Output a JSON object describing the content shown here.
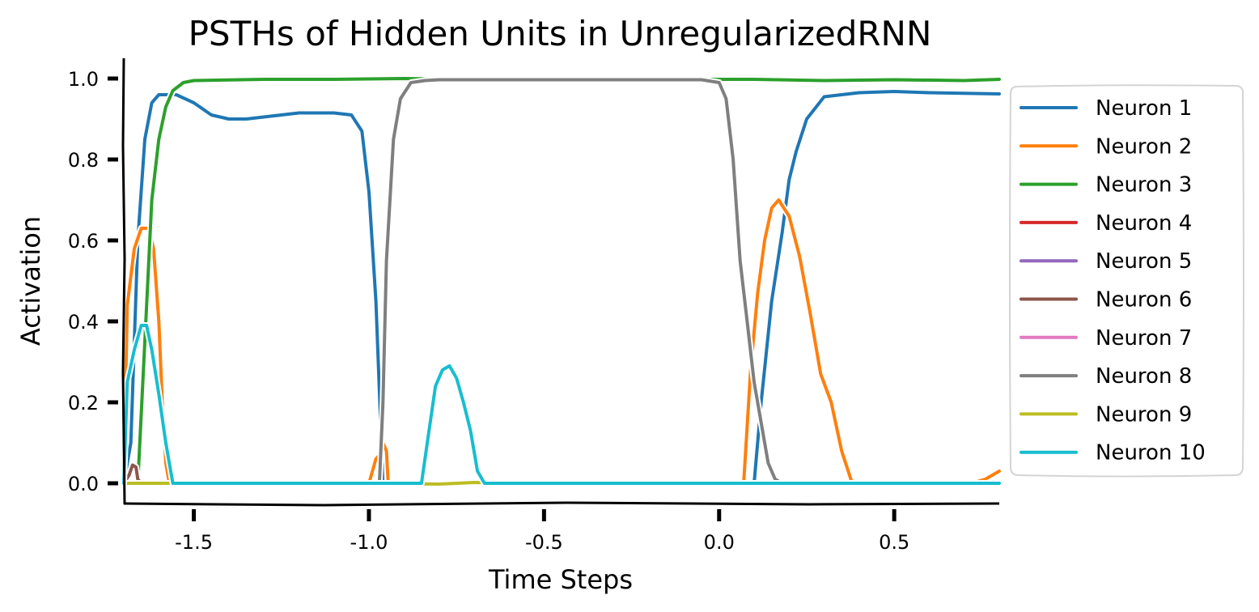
{
  "chart_data": {
    "type": "line",
    "title": "PSTHs of Hidden Units in UnregularizedRNN",
    "xlabel": "Time Steps",
    "ylabel": "Activation",
    "xlim": [
      -1.7,
      0.8
    ],
    "ylim": [
      -0.05,
      1.05
    ],
    "x_ticks": [
      -1.5,
      -1.0,
      -0.5,
      0.0,
      0.5
    ],
    "x_tick_labels": [
      "-1.5",
      "-1.0",
      "-0.5",
      "0.0",
      "0.5"
    ],
    "y_ticks": [
      0.0,
      0.2,
      0.4,
      0.6,
      0.8,
      1.0
    ],
    "y_tick_labels": [
      "0.0",
      "0.2",
      "0.4",
      "0.6",
      "0.8",
      "1.0"
    ],
    "grid": false,
    "legend_position": "outside right",
    "series": [
      {
        "name": "Neuron 1",
        "color": "#1f77b4",
        "x": [
          -1.7,
          -1.68,
          -1.66,
          -1.64,
          -1.62,
          -1.6,
          -1.55,
          -1.5,
          -1.45,
          -1.4,
          -1.35,
          -1.3,
          -1.2,
          -1.1,
          -1.05,
          -1.02,
          -1.0,
          -0.98,
          -0.96,
          -0.5,
          0.0,
          0.1,
          0.12,
          0.15,
          0.18,
          0.2,
          0.22,
          0.25,
          0.3,
          0.4,
          0.5,
          0.6,
          0.8
        ],
        "y": [
          0.0,
          0.1,
          0.6,
          0.85,
          0.94,
          0.96,
          0.96,
          0.94,
          0.91,
          0.9,
          0.9,
          0.905,
          0.915,
          0.915,
          0.91,
          0.87,
          0.72,
          0.45,
          0.0,
          0.0,
          0.0,
          0.0,
          0.2,
          0.45,
          0.62,
          0.75,
          0.82,
          0.9,
          0.955,
          0.965,
          0.968,
          0.965,
          0.962
        ]
      },
      {
        "name": "Neuron 2",
        "color": "#ff7f0e",
        "x": [
          -1.7,
          -1.69,
          -1.67,
          -1.65,
          -1.63,
          -1.615,
          -1.6,
          -1.59,
          -1.58,
          -1.57,
          -1.0,
          -0.98,
          -0.97,
          -0.96,
          -0.95,
          -0.945,
          0.07,
          0.09,
          0.11,
          0.13,
          0.15,
          0.17,
          0.2,
          0.23,
          0.26,
          0.29,
          0.32,
          0.35,
          0.38,
          0.4,
          0.72,
          0.76,
          0.8
        ],
        "y": [
          0.0,
          0.44,
          0.58,
          0.63,
          0.63,
          0.58,
          0.4,
          0.2,
          0.05,
          0.0,
          0.0,
          0.06,
          0.07,
          0.1,
          0.08,
          0.0,
          0.0,
          0.28,
          0.47,
          0.6,
          0.68,
          0.7,
          0.66,
          0.56,
          0.42,
          0.27,
          0.2,
          0.08,
          0.0,
          0.0,
          0.0,
          0.01,
          0.03
        ]
      },
      {
        "name": "Neuron 3",
        "color": "#2ca02c",
        "x": [
          -1.7,
          -1.66,
          -1.64,
          -1.62,
          -1.6,
          -1.58,
          -1.56,
          -1.53,
          -1.5,
          -1.3,
          -1.1,
          -0.9,
          -0.7,
          -0.5,
          -0.3,
          -0.1,
          0.1,
          0.3,
          0.5,
          0.7,
          0.8
        ],
        "y": [
          0.0,
          0.0,
          0.35,
          0.7,
          0.85,
          0.93,
          0.97,
          0.99,
          0.995,
          0.998,
          0.998,
          1.0,
          0.998,
          0.998,
          0.998,
          0.998,
          0.998,
          0.995,
          0.997,
          0.995,
          0.998
        ]
      },
      {
        "name": "Neuron 4",
        "color": "#d62728",
        "x": [
          -1.7,
          -1.5,
          -1.0,
          -0.5,
          0.0,
          0.5,
          0.8
        ],
        "y": [
          0.0,
          0.0,
          0.0,
          0.0,
          0.0,
          0.0,
          0.0
        ]
      },
      {
        "name": "Neuron 5",
        "color": "#9467bd",
        "x": [
          -1.7,
          -1.5,
          -1.0,
          -0.5,
          0.0,
          0.5,
          0.8
        ],
        "y": [
          0.0,
          0.0,
          0.0,
          0.0,
          0.0,
          0.0,
          0.0
        ]
      },
      {
        "name": "Neuron 6",
        "color": "#8c564b",
        "x": [
          -1.7,
          -1.685,
          -1.675,
          -1.665,
          -1.66,
          -1.65,
          -1.5,
          -1.0,
          -0.5,
          0.0,
          0.5,
          0.8
        ],
        "y": [
          0.0,
          0.02,
          0.045,
          0.04,
          0.01,
          0.0,
          0.0,
          0.0,
          0.0,
          0.0,
          0.0,
          0.0
        ]
      },
      {
        "name": "Neuron 7",
        "color": "#e377c2",
        "x": [
          -1.7,
          -1.5,
          -1.0,
          -0.5,
          0.0,
          0.5,
          0.8
        ],
        "y": [
          0.0,
          0.0,
          0.0,
          0.0,
          0.0,
          0.0,
          0.0
        ]
      },
      {
        "name": "Neuron 8",
        "color": "#7f7f7f",
        "x": [
          -0.97,
          -0.96,
          -0.95,
          -0.93,
          -0.91,
          -0.88,
          -0.84,
          -0.8,
          -0.6,
          -0.4,
          -0.2,
          -0.05,
          0.0,
          0.02,
          0.04,
          0.06,
          0.08,
          0.1,
          0.12,
          0.14,
          0.16,
          0.18
        ],
        "y": [
          0.0,
          0.2,
          0.55,
          0.85,
          0.95,
          0.99,
          0.995,
          0.997,
          0.997,
          0.997,
          0.997,
          0.997,
          0.99,
          0.95,
          0.8,
          0.55,
          0.4,
          0.25,
          0.15,
          0.05,
          0.01,
          0.0
        ]
      },
      {
        "name": "Neuron 9",
        "color": "#bcbd22",
        "x": [
          -1.7,
          -1.5,
          -1.0,
          -0.8,
          -0.7,
          -0.5,
          0.0,
          0.5,
          0.8
        ],
        "y": [
          0.0,
          0.0,
          0.0,
          -0.002,
          0.002,
          0.0,
          0.0,
          0.0,
          0.0
        ]
      },
      {
        "name": "Neuron 10",
        "color": "#17becf",
        "x": [
          -1.7,
          -1.69,
          -1.67,
          -1.65,
          -1.635,
          -1.62,
          -1.6,
          -1.58,
          -1.56,
          -1.54,
          -1.5,
          -1.3,
          -1.1,
          -0.85,
          -0.83,
          -0.81,
          -0.79,
          -0.77,
          -0.75,
          -0.73,
          -0.71,
          -0.69,
          -0.67,
          -0.5,
          -0.3,
          0.0,
          0.3,
          0.5,
          0.8
        ],
        "y": [
          0.0,
          0.25,
          0.33,
          0.39,
          0.39,
          0.33,
          0.22,
          0.1,
          0.0,
          0.0,
          0.0,
          0.0,
          0.0,
          0.0,
          0.12,
          0.24,
          0.28,
          0.29,
          0.26,
          0.2,
          0.13,
          0.03,
          0.0,
          0.0,
          0.0,
          0.0,
          0.0,
          0.0,
          0.0
        ]
      }
    ]
  }
}
